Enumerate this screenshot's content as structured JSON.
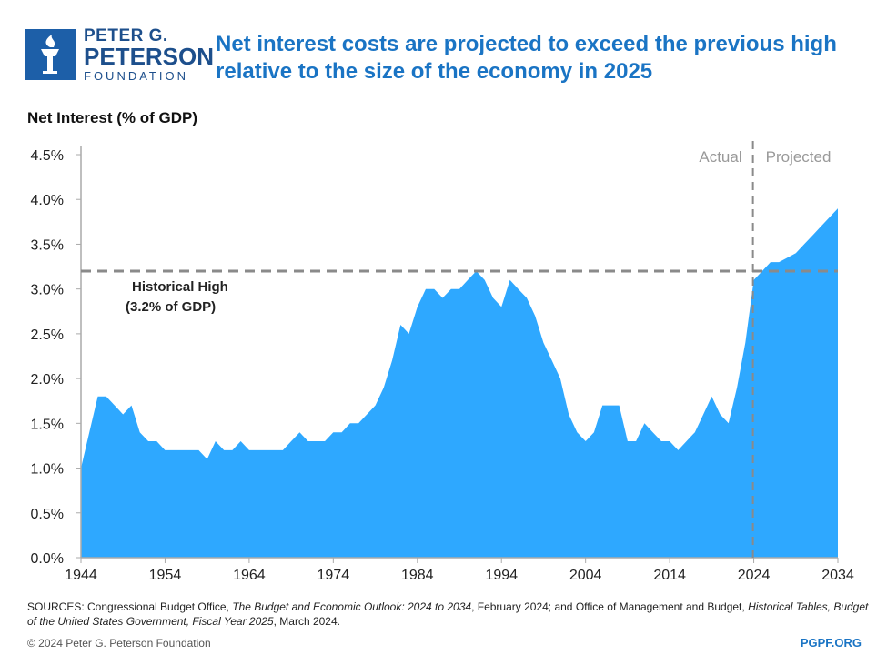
{
  "brand": {
    "line1": "PETER G.",
    "line2": "PETERSON",
    "line3": "FOUNDATION",
    "color": "#1d5fa8",
    "logo_icon": "torch-icon"
  },
  "title": "Net interest costs are projected to exceed the previous high relative to the size of the economy in 2025",
  "footer": {
    "sources_parts": [
      "SOURCES: Congressional Budget Office, ",
      "The Budget and Economic Outlook: 2024 to 2034",
      ", February 2024; and Office of Management and Budget, ",
      "Historical Tables, Budget of the United States Government, Fiscal Year 2025",
      ", March 2024."
    ],
    "copyright": "© 2024 Peter G. Peterson Foundation",
    "url": "PGPF.ORG"
  },
  "chart_data": {
    "type": "area",
    "ylabel": "Net Interest (% of GDP)",
    "xlabel": "",
    "xlim": [
      1944,
      2034
    ],
    "ylim": [
      0,
      4.5
    ],
    "x_ticks": [
      "1944",
      "1954",
      "1964",
      "1974",
      "1984",
      "1994",
      "2004",
      "2014",
      "2024",
      "2034"
    ],
    "y_ticks": [
      "0.0%",
      "0.5%",
      "1.0%",
      "1.5%",
      "2.0%",
      "2.5%",
      "3.0%",
      "3.5%",
      "4.0%",
      "4.5%"
    ],
    "grid": false,
    "fill_color": "#2ea8ff",
    "x": [
      1944,
      1945,
      1946,
      1947,
      1948,
      1949,
      1950,
      1951,
      1952,
      1953,
      1954,
      1955,
      1956,
      1957,
      1958,
      1959,
      1960,
      1961,
      1962,
      1963,
      1964,
      1965,
      1966,
      1967,
      1968,
      1969,
      1970,
      1971,
      1972,
      1973,
      1974,
      1975,
      1976,
      1977,
      1978,
      1979,
      1980,
      1981,
      1982,
      1983,
      1984,
      1985,
      1986,
      1987,
      1988,
      1989,
      1990,
      1991,
      1992,
      1993,
      1994,
      1995,
      1996,
      1997,
      1998,
      1999,
      2000,
      2001,
      2002,
      2003,
      2004,
      2005,
      2006,
      2007,
      2008,
      2009,
      2010,
      2011,
      2012,
      2013,
      2014,
      2015,
      2016,
      2017,
      2018,
      2019,
      2020,
      2021,
      2022,
      2023,
      2024,
      2025,
      2026,
      2027,
      2028,
      2029,
      2030,
      2031,
      2032,
      2033,
      2034
    ],
    "values": [
      1.0,
      1.4,
      1.8,
      1.8,
      1.7,
      1.6,
      1.7,
      1.4,
      1.3,
      1.3,
      1.2,
      1.2,
      1.2,
      1.2,
      1.2,
      1.1,
      1.3,
      1.2,
      1.2,
      1.3,
      1.2,
      1.2,
      1.2,
      1.2,
      1.2,
      1.3,
      1.4,
      1.3,
      1.3,
      1.3,
      1.4,
      1.4,
      1.5,
      1.5,
      1.6,
      1.7,
      1.9,
      2.2,
      2.6,
      2.5,
      2.8,
      3.0,
      3.0,
      2.9,
      3.0,
      3.0,
      3.1,
      3.2,
      3.1,
      2.9,
      2.8,
      3.1,
      3.0,
      2.9,
      2.7,
      2.4,
      2.2,
      2.0,
      1.6,
      1.4,
      1.3,
      1.4,
      1.7,
      1.7,
      1.7,
      1.3,
      1.3,
      1.5,
      1.4,
      1.3,
      1.3,
      1.2,
      1.3,
      1.4,
      1.6,
      1.8,
      1.6,
      1.5,
      1.9,
      2.4,
      3.1,
      3.2,
      3.3,
      3.3,
      3.35,
      3.4,
      3.5,
      3.6,
      3.7,
      3.8,
      3.9
    ],
    "reference_line": {
      "value": 3.2,
      "label_line1": "Historical High",
      "label_line2": "(3.2% of GDP)"
    },
    "divider": {
      "year": 2023.9,
      "left_label": "Actual",
      "right_label": "Projected"
    }
  }
}
